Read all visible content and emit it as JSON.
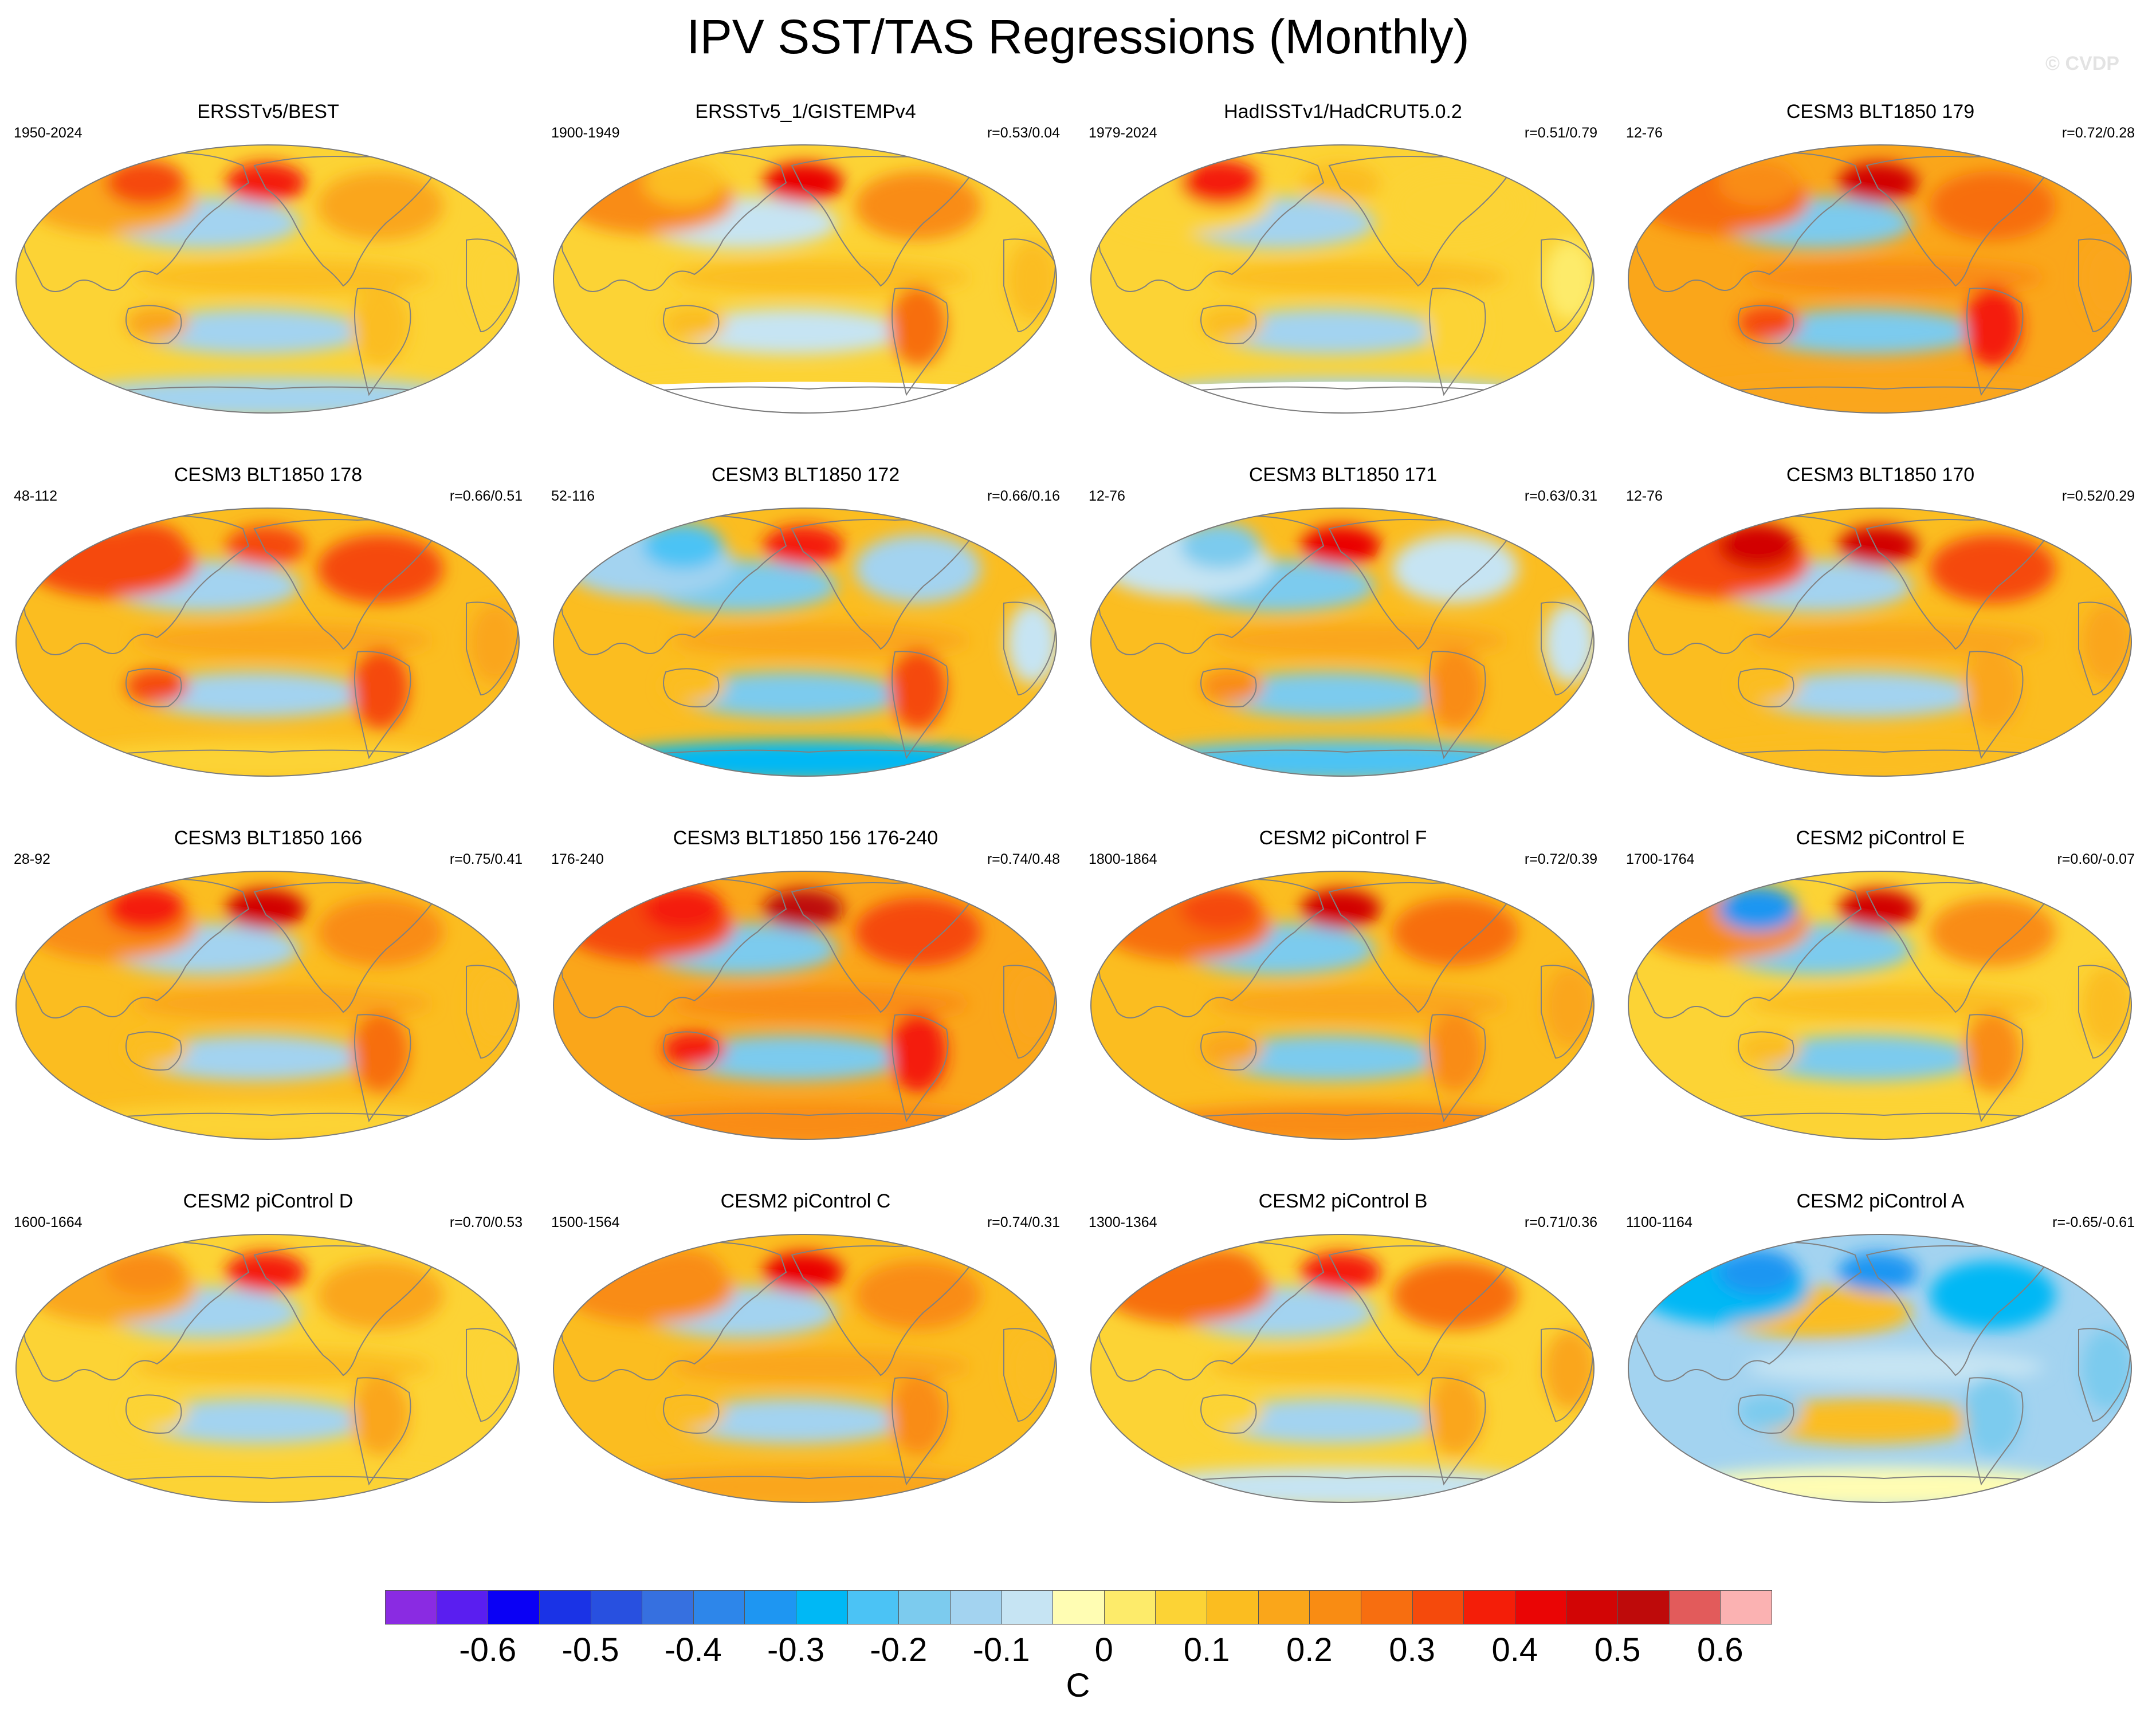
{
  "title": "IPV SST/TAS Regressions (Monthly)",
  "watermark": "© CVDP",
  "panels": [
    {
      "title": "ERSSTv5/BEST",
      "period": "1950-2024",
      "r": "",
      "pattern": {
        "npac": -0.15,
        "nh_land": 0.15,
        "tropics": 0.05,
        "so": -0.15,
        "alaska": 0.35,
        "siberia": 0.3,
        "aus": 0.15,
        "sam": 0.1,
        "blank_so": false
      }
    },
    {
      "title": "ERSSTv5_1/GISTEMPv4",
      "period": "1900-1949",
      "r": "r=0.53/0.04",
      "pattern": {
        "npac": -0.1,
        "nh_land": 0.2,
        "tropics": 0.05,
        "so": 0.05,
        "alaska": 0.4,
        "siberia": 0.1,
        "aus": 0.1,
        "sam": 0.25,
        "blank_so": true
      }
    },
    {
      "title": "HadISSTv1/HadCRUT5.0.2",
      "period": "1979-2024",
      "r": "r=0.51/0.79",
      "pattern": {
        "npac": -0.15,
        "nh_land": 0.05,
        "tropics": 0.05,
        "so": -0.15,
        "alaska": 0.1,
        "siberia": 0.35,
        "aus": 0.1,
        "sam": 0.05,
        "blank_so": true
      }
    },
    {
      "title": "CESM3 BLT1850 179",
      "period": "12-76",
      "r": "r=0.72/0.28",
      "pattern": {
        "npac": -0.2,
        "nh_land": 0.25,
        "tropics": 0.15,
        "so": 0.15,
        "alaska": 0.45,
        "siberia": 0.2,
        "aus": 0.3,
        "sam": 0.35,
        "blank_so": false
      }
    },
    {
      "title": "CESM3 BLT1850 178",
      "period": "48-112",
      "r": "r=0.66/0.51",
      "pattern": {
        "npac": -0.15,
        "nh_land": 0.3,
        "tropics": 0.1,
        "so": 0.05,
        "alaska": 0.3,
        "siberia": 0.3,
        "aus": 0.3,
        "sam": 0.3,
        "blank_so": false
      }
    },
    {
      "title": "CESM3 BLT1850 172",
      "period": "52-116",
      "r": "r=0.66/0.16",
      "pattern": {
        "npac": -0.2,
        "nh_land": -0.15,
        "tropics": 0.1,
        "so": -0.3,
        "alaska": 0.35,
        "siberia": -0.25,
        "aus": 0.1,
        "sam": 0.3,
        "blank_so": false
      }
    },
    {
      "title": "CESM3 BLT1850 171",
      "period": "12-76",
      "r": "r=0.63/0.31",
      "pattern": {
        "npac": -0.2,
        "nh_land": -0.1,
        "tropics": 0.1,
        "so": -0.25,
        "alaska": 0.4,
        "siberia": -0.2,
        "aus": 0.2,
        "sam": 0.2,
        "blank_so": false
      }
    },
    {
      "title": "CESM3 BLT1850 170",
      "period": "12-76",
      "r": "r=0.52/0.29",
      "pattern": {
        "npac": -0.15,
        "nh_land": 0.3,
        "tropics": 0.1,
        "so": 0.1,
        "alaska": 0.45,
        "siberia": 0.45,
        "aus": 0.1,
        "sam": 0.15,
        "blank_so": false
      }
    },
    {
      "title": "CESM3 BLT1850 166",
      "period": "28-92",
      "r": "r=0.75/0.41",
      "pattern": {
        "npac": -0.15,
        "nh_land": 0.2,
        "tropics": 0.1,
        "so": 0.05,
        "alaska": 0.45,
        "siberia": 0.35,
        "aus": 0.1,
        "sam": 0.25,
        "blank_so": false
      }
    },
    {
      "title": "CESM3 BLT1850 156 176-240",
      "period": "176-240",
      "r": "r=0.74/0.48",
      "pattern": {
        "npac": -0.2,
        "nh_land": 0.3,
        "tropics": 0.15,
        "so": 0.2,
        "alaska": 0.5,
        "siberia": 0.35,
        "aus": 0.35,
        "sam": 0.35,
        "blank_so": false
      }
    },
    {
      "title": "CESM2 piControl F",
      "period": "1800-1864",
      "r": "r=0.72/0.39",
      "pattern": {
        "npac": -0.2,
        "nh_land": 0.25,
        "tropics": 0.1,
        "so": 0.2,
        "alaska": 0.45,
        "siberia": 0.3,
        "aus": 0.15,
        "sam": 0.2,
        "blank_so": false
      }
    },
    {
      "title": "CESM2 piControl E",
      "period": "1700-1764",
      "r": "r=0.60/-0.07",
      "pattern": {
        "npac": -0.2,
        "nh_land": 0.2,
        "tropics": 0.05,
        "so": 0.05,
        "alaska": 0.45,
        "siberia": -0.35,
        "aus": 0.1,
        "sam": 0.2,
        "blank_so": false
      }
    },
    {
      "title": "CESM2 piControl D",
      "period": "1600-1664",
      "r": "r=0.70/0.53",
      "pattern": {
        "npac": -0.15,
        "nh_land": 0.15,
        "tropics": 0.05,
        "so": 0.05,
        "alaska": 0.35,
        "siberia": 0.2,
        "aus": 0.05,
        "sam": 0.15,
        "blank_so": false
      }
    },
    {
      "title": "CESM2 piControl C",
      "period": "1500-1564",
      "r": "r=0.74/0.31",
      "pattern": {
        "npac": -0.15,
        "nh_land": 0.2,
        "tropics": 0.1,
        "so": 0.15,
        "alaska": 0.4,
        "siberia": 0.2,
        "aus": 0.1,
        "sam": 0.2,
        "blank_so": false
      }
    },
    {
      "title": "CESM2 piControl B",
      "period": "1300-1364",
      "r": "r=0.71/0.36",
      "pattern": {
        "npac": -0.15,
        "nh_land": 0.25,
        "tropics": 0.05,
        "so": -0.1,
        "alaska": 0.35,
        "siberia": 0.25,
        "aus": 0.05,
        "sam": 0.15,
        "blank_so": false
      }
    },
    {
      "title": "CESM2 piControl A",
      "period": "1100-1164",
      "r": "r=-0.65/-0.61",
      "pattern": {
        "npac": 0.1,
        "nh_land": -0.3,
        "tropics": -0.15,
        "so": -0.05,
        "alaska": -0.35,
        "siberia": -0.35,
        "aus": -0.2,
        "sam": -0.2,
        "blank_so": false
      }
    }
  ],
  "colorbar": {
    "colors": [
      "#8a2be2",
      "#5a1ef0",
      "#0a00f5",
      "#1a33e6",
      "#2850e0",
      "#3670e0",
      "#2d86ea",
      "#1e96f2",
      "#00b8f5",
      "#4bc3f5",
      "#7ccbee",
      "#a3d3f0",
      "#c6e4f3",
      "#fffdb3",
      "#fdeb6a",
      "#fcd335",
      "#fbbd20",
      "#faa61a",
      "#f98c13",
      "#f76e10",
      "#f54a0c",
      "#f41e08",
      "#ea0505",
      "#d20505",
      "#be0a0a",
      "#e25b5b",
      "#fbb2b2"
    ],
    "levels": [
      -0.7,
      -0.65,
      -0.6,
      -0.55,
      -0.5,
      -0.45,
      -0.4,
      -0.35,
      -0.3,
      -0.25,
      -0.2,
      -0.15,
      -0.1,
      -0.05,
      0,
      0.05,
      0.1,
      0.15,
      0.2,
      0.25,
      0.3,
      0.35,
      0.4,
      0.45,
      0.5,
      0.55,
      0.6,
      0.65
    ],
    "tick_values": [
      -0.6,
      -0.5,
      -0.4,
      -0.3,
      -0.2,
      -0.1,
      0,
      0.1,
      0.2,
      0.3,
      0.4,
      0.5,
      0.6
    ],
    "tick_labels": [
      "-0.6",
      "-0.5",
      "-0.4",
      "-0.3",
      "-0.2",
      "-0.1",
      "0",
      "0.1",
      "0.2",
      "0.3",
      "0.4",
      "0.5",
      "0.6"
    ],
    "unit": "C"
  }
}
